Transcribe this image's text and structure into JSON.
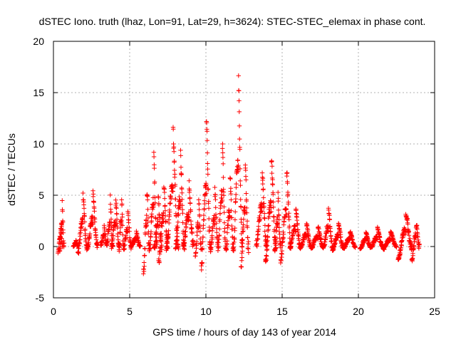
{
  "chart_data": {
    "type": "scatter",
    "title": "dSTEC Iono. truth (lhaz, Lon=91, Lat=29, h=3624): STEC-STEC_elemax in phase cont.",
    "xlabel": "GPS time / hours of day 143 of year 2014",
    "ylabel": "dSTEC  / TECUs",
    "xlim": [
      0,
      25
    ],
    "ylim": [
      -5,
      20
    ],
    "xticks": [
      "0",
      "5",
      "10",
      "15",
      "20",
      "25"
    ],
    "yticks": [
      "-5",
      "0",
      "5",
      "10",
      "15",
      "20"
    ],
    "grid": true,
    "marker": "plus",
    "marker_color": "#ff0000",
    "series": [
      {
        "arcs": [
          {
            "x": [
              0.3,
              0.6
            ],
            "y": [
              -0.7,
              2.0
            ]
          },
          {
            "x": [
              0.4,
              0.7
            ],
            "y": [
              -0.5,
              4.6
            ]
          },
          {
            "x": [
              1.3,
              1.6
            ],
            "y": [
              0.0,
              0.7
            ]
          },
          {
            "x": [
              1.6,
              2.2
            ],
            "y": [
              -0.8,
              5.3
            ]
          },
          {
            "x": [
              2.2,
              2.9
            ],
            "y": [
              -0.3,
              5.6
            ]
          },
          {
            "x": [
              3.1,
              3.5
            ],
            "y": [
              0.1,
              2.3
            ]
          },
          {
            "x": [
              3.5,
              3.9
            ],
            "y": [
              0.0,
              5.3
            ]
          },
          {
            "x": [
              3.8,
              4.3
            ],
            "y": [
              -0.2,
              5.1
            ]
          },
          {
            "x": [
              4.3,
              4.6
            ],
            "y": [
              -0.5,
              5.3
            ]
          },
          {
            "x": [
              4.6,
              5.1
            ],
            "y": [
              -0.3,
              3.7
            ]
          },
          {
            "x": [
              5.1,
              5.7
            ],
            "y": [
              0.0,
              1.6
            ]
          },
          {
            "x": [
              5.9,
              6.3
            ],
            "y": [
              -2.9,
              5.1
            ]
          },
          {
            "x": [
              6.3,
              6.8
            ],
            "y": [
              -0.4,
              9.6
            ]
          },
          {
            "x": [
              6.6,
              7.1
            ],
            "y": [
              -0.3,
              5.1
            ]
          },
          {
            "x": [
              6.9,
              7.5
            ],
            "y": [
              -1.7,
              6.0
            ]
          },
          {
            "x": [
              7.4,
              8.2
            ],
            "y": [
              -0.5,
              12.2
            ]
          },
          {
            "x": [
              8.0,
              8.6
            ],
            "y": [
              -0.3,
              9.8
            ]
          },
          {
            "x": [
              8.5,
              9.2
            ],
            "y": [
              0.0,
              6.6
            ]
          },
          {
            "x": [
              9.3,
              9.7
            ],
            "y": [
              -1.1,
              4.7
            ]
          },
          {
            "x": [
              9.7,
              10.3
            ],
            "y": [
              -2.3,
              12.3
            ]
          },
          {
            "x": [
              10.3,
              10.8
            ],
            "y": [
              -0.5,
              6.0
            ]
          },
          {
            "x": [
              10.8,
              11.3
            ],
            "y": [
              -0.2,
              11.2
            ]
          },
          {
            "x": [
              11.3,
              11.8
            ],
            "y": [
              -0.4,
              7.4
            ]
          },
          {
            "x": [
              11.8,
              12.4
            ],
            "y": [
              -0.6,
              17.6
            ]
          },
          {
            "x": [
              12.3,
              12.8
            ],
            "y": [
              -2.0,
              8.0
            ]
          },
          {
            "x": [
              13.3,
              14.0
            ],
            "y": [
              0.0,
              8.4
            ]
          },
          {
            "x": [
              13.9,
              14.6
            ],
            "y": [
              -1.5,
              8.6
            ]
          },
          {
            "x": [
              14.5,
              14.9
            ],
            "y": [
              -0.5,
              5.5
            ]
          },
          {
            "x": [
              14.9,
              15.6
            ],
            "y": [
              -1.6,
              7.2
            ]
          },
          {
            "x": [
              15.5,
              16.2
            ],
            "y": [
              -0.3,
              4.0
            ]
          },
          {
            "x": [
              16.2,
              16.9
            ],
            "y": [
              -0.1,
              2.5
            ]
          },
          {
            "x": [
              16.9,
              17.7
            ],
            "y": [
              -0.2,
              2.0
            ]
          },
          {
            "x": [
              17.7,
              18.3
            ],
            "y": [
              -0.2,
              4.1
            ]
          },
          {
            "x": [
              18.3,
              19.0
            ],
            "y": [
              -0.4,
              2.3
            ]
          },
          {
            "x": [
              19.0,
              19.8
            ],
            "y": [
              -0.2,
              1.5
            ]
          },
          {
            "x": [
              20.1,
              20.8
            ],
            "y": [
              -0.3,
              1.4
            ]
          },
          {
            "x": [
              20.8,
              21.6
            ],
            "y": [
              -0.2,
              1.9
            ]
          },
          {
            "x": [
              21.6,
              22.5
            ],
            "y": [
              -0.3,
              1.5
            ]
          },
          {
            "x": [
              22.6,
              23.5
            ],
            "y": [
              -1.3,
              3.2
            ]
          },
          {
            "x": [
              23.5,
              24.0
            ],
            "y": [
              -1.5,
              2.1
            ]
          }
        ]
      }
    ]
  }
}
